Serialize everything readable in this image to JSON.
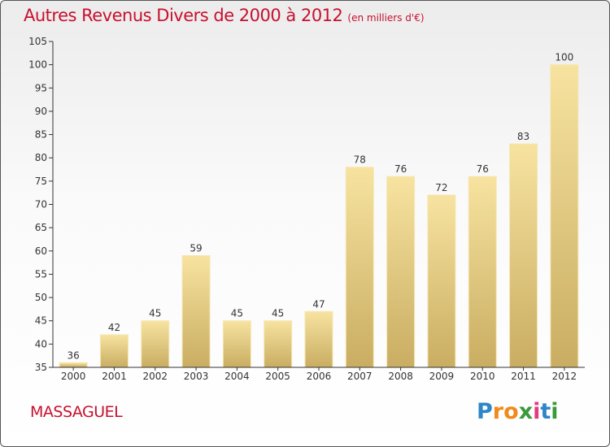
{
  "chart_data": {
    "type": "bar",
    "title": "Autres Revenus Divers de 2000 à 2012",
    "subtitle": "(en milliers d'€)",
    "xlabel": "",
    "ylabel": "",
    "categories": [
      "2000",
      "2001",
      "2002",
      "2003",
      "2004",
      "2005",
      "2006",
      "2007",
      "2008",
      "2009",
      "2010",
      "2011",
      "2012"
    ],
    "values": [
      36,
      42,
      45,
      59,
      45,
      45,
      47,
      78,
      76,
      72,
      76,
      83,
      100
    ],
    "ylim": [
      35,
      105
    ],
    "yticks": [
      35,
      40,
      45,
      50,
      55,
      60,
      65,
      70,
      75,
      80,
      85,
      90,
      95,
      100,
      105
    ],
    "grid": false,
    "bar_color_top": "#f7e3a0",
    "bar_color_bottom": "#c9ad62"
  },
  "footer": {
    "commune": "MASSAGUEL",
    "logo": {
      "letters": [
        "P",
        "r",
        "o",
        "x",
        "i",
        "t",
        "i"
      ],
      "colors": [
        "#2c86c9",
        "#f08a1c",
        "#f08a1c",
        "#3a9a3a",
        "#e23b7f",
        "#2c86c9",
        "#3a9a3a"
      ]
    }
  },
  "colors": {
    "title": "#c8102e",
    "axis": "#333333"
  }
}
